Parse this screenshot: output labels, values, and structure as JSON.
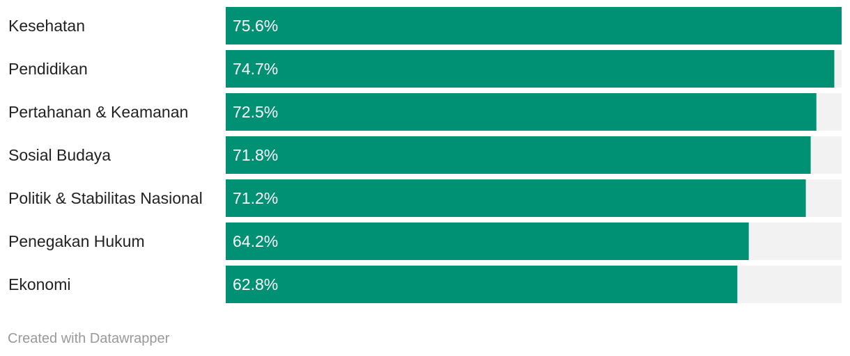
{
  "chart_data": {
    "type": "bar",
    "orientation": "horizontal",
    "categories": [
      "Kesehatan",
      "Pendidikan",
      "Pertahanan & Keamanan",
      "Sosial Budaya",
      "Politik & Stabilitas Nasional",
      "Penegakan Hukum",
      "Ekonomi"
    ],
    "values": [
      75.6,
      74.7,
      72.5,
      71.8,
      71.2,
      64.2,
      62.8
    ],
    "value_labels": [
      "75.6%",
      "74.7%",
      "72.5%",
      "71.8%",
      "71.2%",
      "64.2%",
      "62.8%"
    ],
    "xlim": [
      0,
      75.6
    ],
    "grid": false,
    "colors": {
      "bar": "#009175",
      "track": "#f2f2f2",
      "label_text": "#222222",
      "value_text": "#ffffff"
    }
  },
  "footer": {
    "credit": "Created with Datawrapper"
  }
}
